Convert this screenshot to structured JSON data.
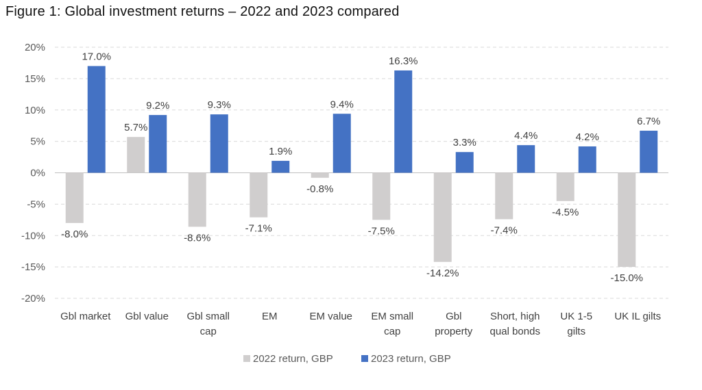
{
  "title": "Figure 1: Global investment returns – 2022 and 2023 compared",
  "chart_data": {
    "type": "bar",
    "title": "Figure 1: Global investment returns – 2022 and 2023 compared",
    "categories": [
      [
        "Gbl market"
      ],
      [
        "Gbl value"
      ],
      [
        "Gbl small",
        "cap"
      ],
      [
        "EM"
      ],
      [
        "EM value"
      ],
      [
        "EM small",
        "cap"
      ],
      [
        "Gbl",
        "property"
      ],
      [
        "Short, high",
        "qual bonds"
      ],
      [
        "UK 1-5",
        "gilts"
      ],
      [
        "UK IL gilts"
      ]
    ],
    "series": [
      {
        "name": "2022 return, GBP",
        "color": "#d0cece",
        "values": [
          -8.0,
          5.7,
          -8.6,
          -7.1,
          -0.8,
          -7.5,
          -14.2,
          -7.4,
          -4.5,
          -15.0
        ],
        "labels": [
          "-8.0%",
          "5.7%",
          "-8.6%",
          "-7.1%",
          "-0.8%",
          "-7.5%",
          "-14.2%",
          "-7.4%",
          "-4.5%",
          "-15.0%"
        ]
      },
      {
        "name": "2023 return, GBP",
        "color": "#4472c4",
        "values": [
          17.0,
          9.2,
          9.3,
          1.9,
          9.4,
          16.3,
          3.3,
          4.4,
          4.2,
          6.7
        ],
        "labels": [
          "17.0%",
          "9.2%",
          "9.3%",
          "1.9%",
          "9.4%",
          "16.3%",
          "3.3%",
          "4.4%",
          "4.2%",
          "6.7%"
        ]
      }
    ],
    "ylim": [
      -20,
      20
    ],
    "yticks": [
      "20%",
      "15%",
      "10%",
      "5%",
      "0%",
      "-5%",
      "-10%",
      "-15%",
      "-20%"
    ],
    "ytick_values": [
      20,
      15,
      10,
      5,
      0,
      -5,
      -10,
      -15,
      -20
    ],
    "grid": true,
    "legend": "bottom-center"
  }
}
